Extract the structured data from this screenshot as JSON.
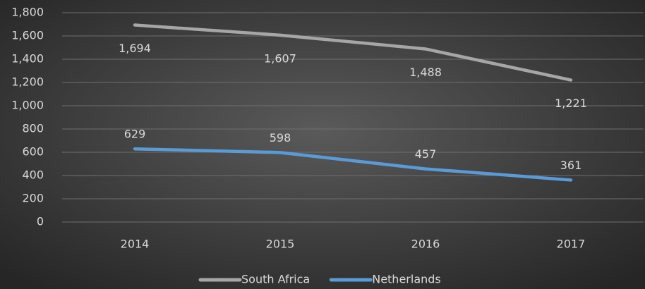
{
  "chart_data": {
    "type": "line",
    "categories": [
      "2014",
      "2015",
      "2016",
      "2017"
    ],
    "series": [
      {
        "name": "South Africa",
        "color": "#a6a6a6",
        "values": [
          1694,
          1607,
          1488,
          1221
        ],
        "value_labels": [
          "1,694",
          "1,607",
          "1,488",
          "1,221"
        ]
      },
      {
        "name": "Netherlands",
        "color": "#5b9bd5",
        "values": [
          629,
          598,
          457,
          361
        ]
      }
    ],
    "ylim": [
      0,
      1800
    ],
    "yticks": [
      0,
      200,
      400,
      600,
      800,
      {
        "value": 1000,
        "label": "1,000"
      },
      {
        "value": 1200,
        "label": "1,200"
      },
      {
        "value": 1400,
        "label": "1,400"
      },
      {
        "value": 1600,
        "label": "1,600"
      },
      {
        "value": 1800,
        "label": "1,800"
      }
    ],
    "grid": true,
    "legend": "bottom"
  }
}
